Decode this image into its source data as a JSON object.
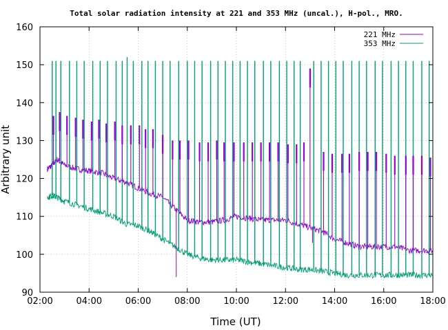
{
  "chart_data": {
    "type": "line",
    "title": "Total solar radiation intensity at 221 and 353 MHz (uncal.), H-pol., MRO.",
    "xlabel": "Time (UT)",
    "ylabel": "Arbitrary unit",
    "xlim": [
      2.0,
      18.0
    ],
    "ylim": [
      90,
      160
    ],
    "x_ticks": [
      "02:00",
      "04:00",
      "06:00",
      "08:00",
      "10:00",
      "12:00",
      "14:00",
      "16:00",
      "18:00"
    ],
    "y_ticks": [
      "90",
      "100",
      "110",
      "120",
      "130",
      "140",
      "150",
      "160"
    ],
    "grid": true,
    "legend_position": "top-right",
    "colors": {
      "s221": "#9400d3",
      "s353": "#009e73"
    },
    "series": [
      {
        "name": "221 MHz",
        "x": [
          2.3,
          2.5,
          2.7,
          3.0,
          3.5,
          4.0,
          4.5,
          5.0,
          5.5,
          6.0,
          6.5,
          7.0,
          7.5,
          8.0,
          8.5,
          9.0,
          9.5,
          10.0,
          10.5,
          11.0,
          11.5,
          12.0,
          12.5,
          13.0,
          13.5,
          14.0,
          14.5,
          15.0,
          15.5,
          16.0,
          16.5,
          17.0,
          17.5,
          18.0
        ],
        "values": [
          122.5,
          123.5,
          125,
          123.5,
          122.5,
          122,
          121.5,
          120,
          119,
          117.5,
          116,
          115,
          112,
          109,
          108.5,
          108.5,
          109,
          110,
          109.5,
          109,
          109,
          109,
          108,
          107,
          106,
          104,
          103,
          102,
          102,
          102,
          102,
          101,
          101,
          101
        ]
      },
      {
        "name": "353 MHz",
        "x": [
          2.3,
          2.5,
          2.7,
          3.0,
          3.5,
          4.0,
          4.5,
          5.0,
          5.5,
          6.0,
          6.5,
          7.0,
          7.5,
          8.0,
          8.5,
          9.0,
          9.5,
          10.0,
          10.5,
          11.0,
          11.5,
          12.0,
          12.5,
          13.0,
          13.5,
          14.0,
          14.5,
          15.0,
          15.5,
          16.0,
          16.5,
          17.0,
          17.5,
          18.0
        ],
        "values": [
          115,
          115.5,
          115,
          114,
          113,
          112,
          111,
          110,
          108,
          107.5,
          106,
          104,
          102,
          100,
          99,
          98.5,
          98.5,
          98.5,
          98,
          97.5,
          97,
          96.5,
          96,
          96,
          95.5,
          95,
          94.5,
          94.5,
          94.5,
          94.5,
          94.5,
          94.5,
          94.5,
          94.5
        ]
      }
    ],
    "spikes_221": {
      "x": [
        2.55,
        2.8,
        3.1,
        3.45,
        3.75,
        4.1,
        4.4,
        4.7,
        5.05,
        5.35,
        5.7,
        6.05,
        6.3,
        6.6,
        7.0,
        7.4,
        7.7,
        8.05,
        8.5,
        8.85,
        9.2,
        9.5,
        9.9,
        10.3,
        10.65,
        11.0,
        11.35,
        11.7,
        12.1,
        12.45,
        12.75,
        13.0,
        13.55,
        13.9,
        14.3,
        14.6,
        15.0,
        15.35,
        15.7,
        16.1,
        16.45,
        16.9,
        17.2,
        17.55,
        17.9
      ],
      "values": [
        136.5,
        137.5,
        136.5,
        136,
        135.5,
        135,
        135.5,
        134.5,
        135,
        134,
        134,
        134,
        133,
        133,
        131.5,
        130,
        130,
        130,
        129.5,
        129.5,
        130,
        129.5,
        129.5,
        129.5,
        129.5,
        129.5,
        129.5,
        129.5,
        129,
        129,
        129.5,
        149,
        127,
        126.5,
        126.5,
        126.5,
        127,
        127,
        127,
        126.5,
        126,
        126,
        126,
        126,
        125.5
      ]
    },
    "spikes_353": {
      "x": [
        2.5,
        2.65,
        2.85,
        3.2,
        3.5,
        3.8,
        4.15,
        4.45,
        4.75,
        5.1,
        5.35,
        5.55,
        5.8,
        6.15,
        6.4,
        6.7,
        7.0,
        7.3,
        7.65,
        8.0,
        8.3,
        8.6,
        8.95,
        9.25,
        9.55,
        9.85,
        10.15,
        10.45,
        10.75,
        11.1,
        11.4,
        11.75,
        12.05,
        12.35,
        12.6,
        13.15,
        13.45,
        13.75,
        14.05,
        14.35,
        14.7,
        15.0,
        15.3,
        15.65,
        15.95,
        16.3,
        16.6,
        16.9,
        17.2,
        17.55,
        17.85
      ],
      "values": [
        151,
        151,
        151,
        151,
        151,
        151,
        151,
        151,
        151,
        151,
        151,
        152,
        151,
        151,
        151,
        151,
        151,
        151,
        151,
        151,
        151,
        151,
        151,
        151,
        151,
        151,
        151,
        151,
        151,
        151,
        151,
        151,
        151,
        151,
        151,
        151,
        151,
        151,
        151,
        151,
        151,
        151,
        151,
        151,
        151,
        151,
        151,
        151,
        151,
        151,
        151
      ]
    },
    "dips": [
      {
        "series": "221 MHz",
        "x": 7.55,
        "value": 94
      },
      {
        "series": "221 MHz",
        "x": 13.1,
        "value": 103
      }
    ]
  }
}
